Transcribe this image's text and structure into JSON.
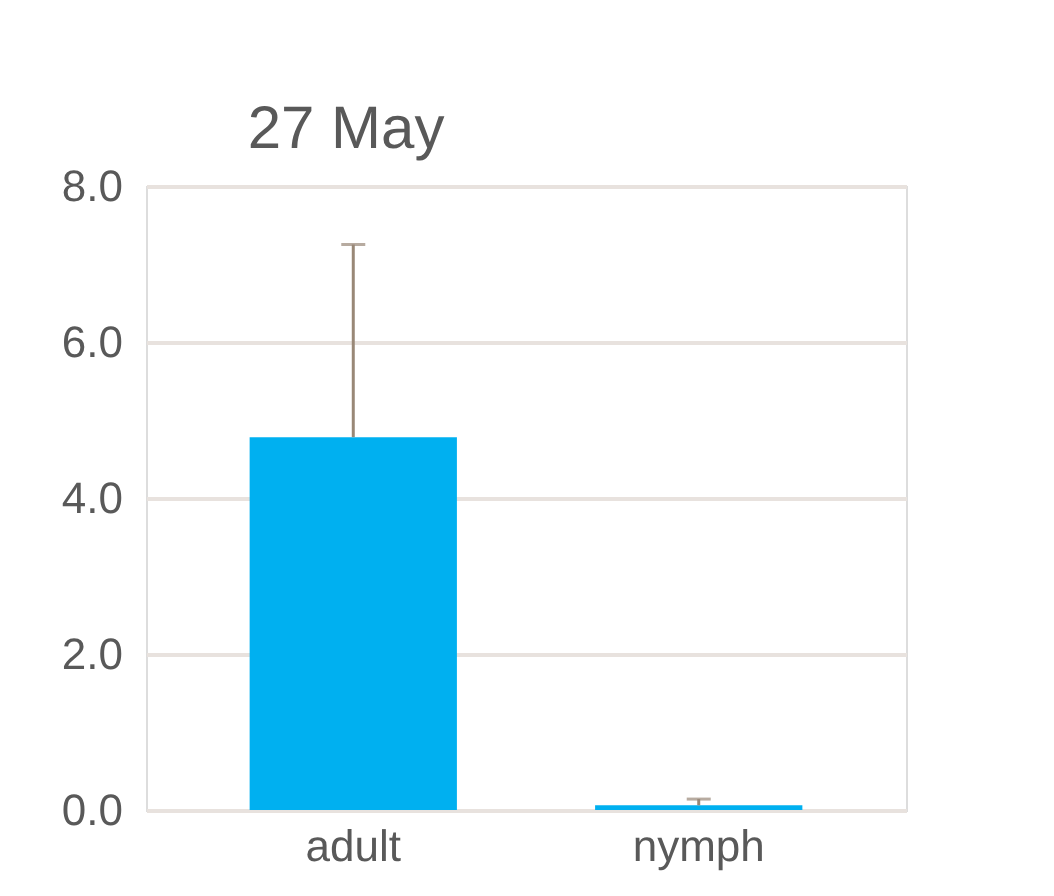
{
  "chart_data": {
    "type": "bar",
    "title": "27 May",
    "categories": [
      "adult",
      "nymph"
    ],
    "values": [
      4.78,
      0.06
    ],
    "errors": [
      [
        4.78,
        7.25
      ],
      [
        0.06,
        0.14
      ]
    ],
    "color": "#00b0f0",
    "ylim": [
      0,
      8
    ],
    "yticks": [
      {
        "value": 0,
        "label": "0.0"
      },
      {
        "value": 2,
        "label": "2.0"
      },
      {
        "value": 4,
        "label": "4.0"
      },
      {
        "value": 6,
        "label": "6.0"
      },
      {
        "value": 8,
        "label": "8.0"
      }
    ],
    "grid": "y"
  }
}
